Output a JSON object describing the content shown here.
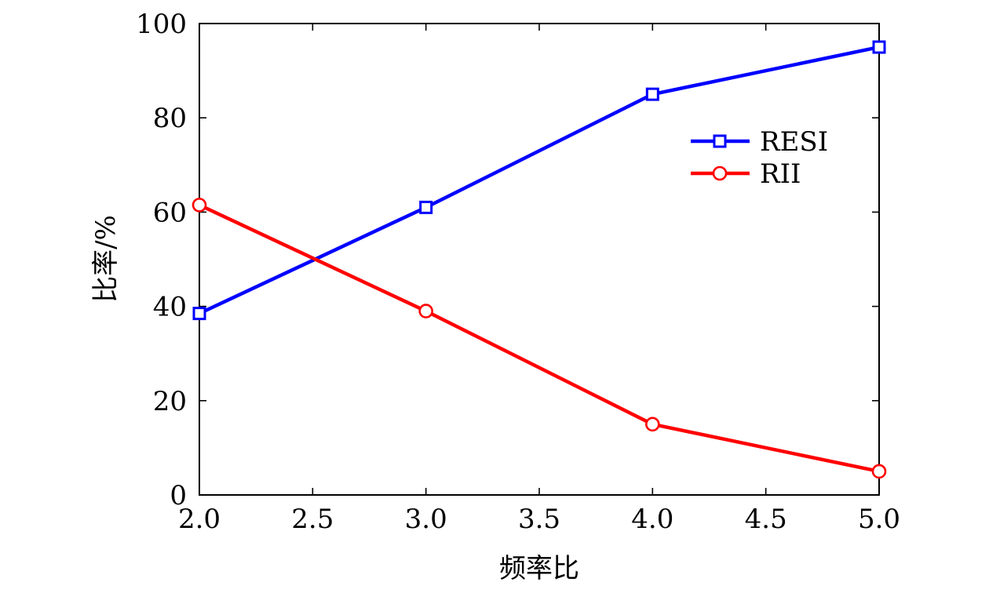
{
  "chart_data": {
    "type": "line",
    "title": "",
    "xlabel": "频率比",
    "ylabel": "比率/%",
    "xlim": [
      2.0,
      5.0
    ],
    "ylim": [
      0,
      100
    ],
    "xticks": [
      "2.0",
      "2.5",
      "3.0",
      "3.5",
      "4.0",
      "4.5",
      "5.0"
    ],
    "yticks": [
      "0",
      "20",
      "40",
      "60",
      "80",
      "100"
    ],
    "x": [
      2.0,
      3.0,
      4.0,
      5.0
    ],
    "series": [
      {
        "name": "RESI",
        "color": "#0000ff",
        "marker": "square",
        "values": [
          38.5,
          61,
          85,
          95
        ]
      },
      {
        "name": "RII",
        "color": "#ff0000",
        "marker": "circle",
        "values": [
          61.5,
          39,
          15,
          5
        ]
      }
    ],
    "legend_position": "top-right",
    "grid": false
  }
}
